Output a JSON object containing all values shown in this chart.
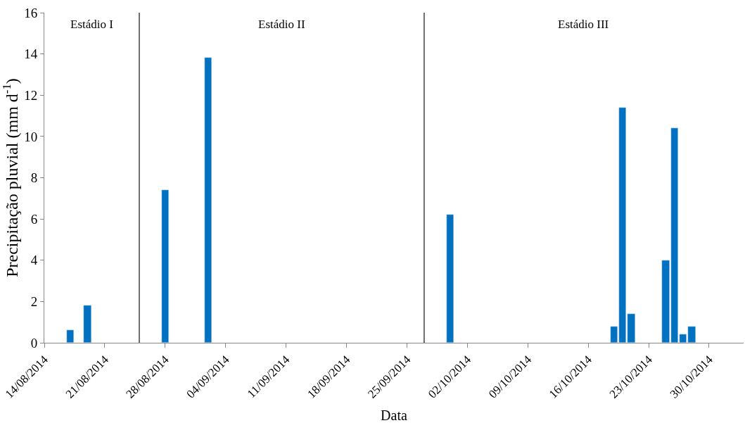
{
  "chart_data": {
    "type": "bar",
    "xlabel": "Data",
    "ylabel": "Precipitação pluvial (mm d$^{-1}$)",
    "x": [
      "2014-08-17",
      "2014-08-19",
      "2014-08-28",
      "2014-09-02",
      "2014-09-30",
      "2014-10-19",
      "2014-10-20",
      "2014-10-21",
      "2014-10-25",
      "2014-10-26",
      "2014-10-27",
      "2014-10-28"
    ],
    "values": [
      0.6,
      1.8,
      7.4,
      13.8,
      6.2,
      0.8,
      11.4,
      1.4,
      4.0,
      10.4,
      0.4,
      0.8
    ],
    "color": "#0070c0",
    "xlim": [
      "2014-08-14",
      "2014-11-03"
    ],
    "xticks": [
      {
        "value": "2014-08-14",
        "label": "14/08/2014"
      },
      {
        "value": "2014-08-21",
        "label": "21/08/2014"
      },
      {
        "value": "2014-08-28",
        "label": "28/08/2014"
      },
      {
        "value": "2014-09-04",
        "label": "04/09/2014"
      },
      {
        "value": "2014-09-11",
        "label": "11/09/2014"
      },
      {
        "value": "2014-09-18",
        "label": "18/09/2014"
      },
      {
        "value": "2014-09-25",
        "label": "25/09/2014"
      },
      {
        "value": "2014-10-02",
        "label": "02/10/2014"
      },
      {
        "value": "2014-10-09",
        "label": "09/10/2014"
      },
      {
        "value": "2014-10-16",
        "label": "16/10/2014"
      },
      {
        "value": "2014-10-23",
        "label": "23/10/2014"
      },
      {
        "value": "2014-10-30",
        "label": "30/10/2014"
      }
    ],
    "ylim": [
      0,
      16
    ],
    "yticks": [
      0,
      2,
      4,
      6,
      8,
      10,
      12,
      14,
      16
    ],
    "ref_lines": [
      {
        "axis": "x",
        "value": "2014-08-25",
        "color": "#404040"
      },
      {
        "axis": "x",
        "value": "2014-09-27",
        "color": "#404040"
      }
    ],
    "annotations": [
      "Estádio I",
      "Estádio II",
      "Estádio III"
    ]
  }
}
